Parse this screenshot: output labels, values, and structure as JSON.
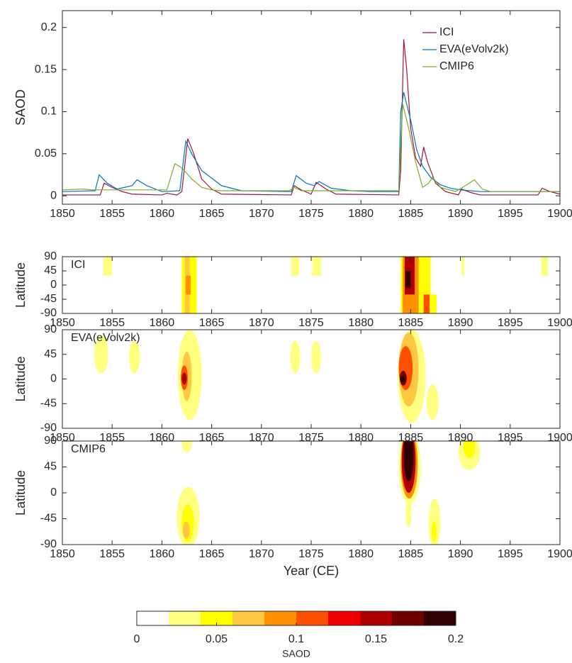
{
  "chart_data": [
    {
      "type": "line",
      "ylabel": "SAOD",
      "xlim": [
        1850,
        1900
      ],
      "xticks": [
        1850,
        1855,
        1860,
        1865,
        1870,
        1875,
        1880,
        1885,
        1890,
        1895,
        1900
      ],
      "ylim": [
        -0.01,
        0.22
      ],
      "yticks": [
        0,
        0.05,
        0.1,
        0.15,
        0.2
      ],
      "legend": "upper right",
      "series": [
        {
          "name": "ICI",
          "color": "#a2142f",
          "x": [
            1850,
            1853.8,
            1854.2,
            1855,
            1856,
            1857,
            1860,
            1860.5,
            1861.5,
            1862.0,
            1862.6,
            1863.2,
            1864,
            1865,
            1866,
            1873.0,
            1873.3,
            1874,
            1875,
            1875.5,
            1876.5,
            1877.5,
            1883.8,
            1884.0,
            1884.3,
            1884.6,
            1885,
            1885.5,
            1886,
            1886.3,
            1886.7,
            1887.5,
            1888.5,
            1889.8,
            1890.1,
            1891,
            1892,
            1897.8,
            1898.2,
            1899,
            1900
          ],
          "values": [
            0.001,
            0.001,
            0.015,
            0.01,
            0.005,
            0.002,
            0.001,
            0.003,
            0.001,
            0.005,
            0.068,
            0.05,
            0.02,
            0.008,
            0.002,
            0.001,
            0.012,
            0.007,
            0.002,
            0.016,
            0.008,
            0.002,
            0.001,
            0.03,
            0.186,
            0.15,
            0.08,
            0.045,
            0.035,
            0.058,
            0.04,
            0.015,
            0.005,
            0.001,
            0.008,
            0.004,
            0.001,
            0.001,
            0.009,
            0.005,
            0.002
          ]
        },
        {
          "name": "EVA(eVolv2k)",
          "color": "#0072bd",
          "x": [
            1850,
            1853.3,
            1853.7,
            1854.5,
            1855.5,
            1857.0,
            1857.5,
            1858.5,
            1860,
            1861.8,
            1862.4,
            1863,
            1864,
            1866,
            1868,
            1873,
            1873.5,
            1874.5,
            1875.3,
            1875.8,
            1877,
            1879,
            1881,
            1883.8,
            1884.0,
            1884.3,
            1885,
            1885.6,
            1886.2,
            1887,
            1888,
            1889,
            1890,
            1891,
            1892,
            1900
          ],
          "values": [
            0.005,
            0.006,
            0.025,
            0.015,
            0.008,
            0.012,
            0.019,
            0.012,
            0.005,
            0.006,
            0.065,
            0.05,
            0.03,
            0.012,
            0.006,
            0.005,
            0.024,
            0.015,
            0.012,
            0.017,
            0.009,
            0.006,
            0.005,
            0.005,
            0.1,
            0.123,
            0.09,
            0.055,
            0.035,
            0.022,
            0.013,
            0.009,
            0.007,
            0.006,
            0.005,
            0.005
          ]
        },
        {
          "name": "CMIP6",
          "color": "#77ac30",
          "x": [
            1850,
            1852,
            1853,
            1860.5,
            1861.3,
            1861.8,
            1862.4,
            1863,
            1864,
            1865,
            1866,
            1872.8,
            1873.3,
            1874,
            1883.8,
            1884.0,
            1884.2,
            1884.8,
            1885.5,
            1886.2,
            1886.8,
            1887.2,
            1888,
            1889.5,
            1890.5,
            1891.4,
            1892.2,
            1893,
            1900
          ],
          "values": [
            0.007,
            0.008,
            0.007,
            0.007,
            0.038,
            0.035,
            0.028,
            0.02,
            0.01,
            0.007,
            0.006,
            0.006,
            0.01,
            0.006,
            0.006,
            0.06,
            0.109,
            0.08,
            0.04,
            0.01,
            0.015,
            0.022,
            0.01,
            0.005,
            0.012,
            0.019,
            0.008,
            0.005,
            0.005
          ]
        }
      ]
    },
    {
      "type": "heatmap",
      "label": "ICI",
      "ylabel": "Latitude",
      "shape": "rect",
      "xlim": [
        1850,
        1900
      ],
      "xticks": [
        1850,
        1855,
        1860,
        1865,
        1870,
        1875,
        1880,
        1885,
        1890,
        1895,
        1900
      ],
      "ylim": [
        -90,
        90
      ],
      "yticks": [
        -90,
        -45,
        0,
        45,
        90
      ],
      "patches": [
        {
          "x": [
            1854.1,
            1855.0
          ],
          "lat": [
            30,
            90
          ],
          "value": 0.03
        },
        {
          "x": [
            1862.0,
            1863.5
          ],
          "lat": [
            -90,
            90
          ],
          "value": 0.04
        },
        {
          "x": [
            1862.3,
            1862.8
          ],
          "lat": [
            -90,
            90
          ],
          "value": 0.06
        },
        {
          "x": [
            1862.4,
            1862.9
          ],
          "lat": [
            -30,
            30
          ],
          "value": 0.08
        },
        {
          "x": [
            1873.0,
            1873.8
          ],
          "lat": [
            30,
            90
          ],
          "value": 0.03
        },
        {
          "x": [
            1875.1,
            1876.0
          ],
          "lat": [
            30,
            90
          ],
          "value": 0.03
        },
        {
          "x": [
            1884.0,
            1886.0
          ],
          "lat": [
            -90,
            90
          ],
          "value": 0.05
        },
        {
          "x": [
            1886.0,
            1887.6
          ],
          "lat": [
            -90,
            -30
          ],
          "value": 0.04
        },
        {
          "x": [
            1886.0,
            1887.0
          ],
          "lat": [
            -30,
            90
          ],
          "value": 0.04
        },
        {
          "x": [
            1884.2,
            1885.8
          ],
          "lat": [
            -90,
            90
          ],
          "value": 0.09
        },
        {
          "x": [
            1884.4,
            1885.4
          ],
          "lat": [
            -30,
            90
          ],
          "value": 0.15
        },
        {
          "x": [
            1884.5,
            1885.0
          ],
          "lat": [
            -10,
            45
          ],
          "value": 0.19
        },
        {
          "x": [
            1886.3,
            1886.9
          ],
          "lat": [
            -90,
            -30
          ],
          "value": 0.1
        },
        {
          "x": [
            1890.1,
            1890.4
          ],
          "lat": [
            30,
            90
          ],
          "value": 0.03
        },
        {
          "x": [
            1898.1,
            1898.8
          ],
          "lat": [
            30,
            90
          ],
          "value": 0.03
        }
      ]
    },
    {
      "type": "heatmap",
      "label": "EVA(eVolv2k)",
      "ylabel": "Latitude",
      "shape": "ellipse",
      "xlim": [
        1850,
        1900
      ],
      "xticks": [
        1850,
        1855,
        1860,
        1865,
        1870,
        1875,
        1880,
        1885,
        1890,
        1895,
        1900
      ],
      "ylim": [
        -90,
        90
      ],
      "yticks": [
        -90,
        -45,
        0,
        45,
        90
      ],
      "patches": [
        {
          "x": [
            1853.2,
            1854.6
          ],
          "lat": [
            10,
            80
          ],
          "value": 0.03
        },
        {
          "x": [
            1856.7,
            1857.8
          ],
          "lat": [
            10,
            70
          ],
          "value": 0.03
        },
        {
          "x": [
            1861.6,
            1864.0
          ],
          "lat": [
            -75,
            90
          ],
          "value": 0.03
        },
        {
          "x": [
            1862.0,
            1863.0
          ],
          "lat": [
            -40,
            50
          ],
          "value": 0.06
        },
        {
          "x": [
            1861.9,
            1862.6
          ],
          "lat": [
            -20,
            25
          ],
          "value": 0.1
        },
        {
          "x": [
            1862.0,
            1862.5
          ],
          "lat": [
            -10,
            12
          ],
          "value": 0.14
        },
        {
          "x": [
            1872.9,
            1873.9
          ],
          "lat": [
            10,
            70
          ],
          "value": 0.03
        },
        {
          "x": [
            1875.0,
            1876.0
          ],
          "lat": [
            10,
            70
          ],
          "value": 0.03
        },
        {
          "x": [
            1883.7,
            1886.5
          ],
          "lat": [
            -80,
            90
          ],
          "value": 0.03
        },
        {
          "x": [
            1883.8,
            1885.8
          ],
          "lat": [
            -50,
            85
          ],
          "value": 0.07
        },
        {
          "x": [
            1883.8,
            1885.2
          ],
          "lat": [
            -20,
            60
          ],
          "value": 0.11
        },
        {
          "x": [
            1883.9,
            1884.6
          ],
          "lat": [
            -12,
            15
          ],
          "value": 0.17
        },
        {
          "x": [
            1884.0,
            1884.4
          ],
          "lat": [
            -6,
            6
          ],
          "value": 0.2
        },
        {
          "x": [
            1886.6,
            1887.8
          ],
          "lat": [
            -75,
            -10
          ],
          "value": 0.03
        }
      ]
    },
    {
      "type": "heatmap",
      "label": "CMIP6",
      "ylabel": "Latitude",
      "xlabel": "Year (CE)",
      "shape": "ellipse",
      "xlim": [
        1850,
        1900
      ],
      "xticks": [
        1850,
        1855,
        1860,
        1865,
        1870,
        1875,
        1880,
        1885,
        1890,
        1895,
        1900
      ],
      "ylim": [
        -90,
        90
      ],
      "yticks": [
        -90,
        -45,
        0,
        45,
        90
      ],
      "patches": [
        {
          "x": [
            1862.0,
            1863.0
          ],
          "lat": [
            70,
            100
          ],
          "value": 0.03
        },
        {
          "x": [
            1861.5,
            1863.8
          ],
          "lat": [
            -95,
            10
          ],
          "value": 0.03
        },
        {
          "x": [
            1862.0,
            1863.2
          ],
          "lat": [
            -85,
            -20
          ],
          "value": 0.05
        },
        {
          "x": [
            1862.1,
            1862.8
          ],
          "lat": [
            -80,
            -50
          ],
          "value": 0.07
        },
        {
          "x": [
            1883.8,
            1886.0
          ],
          "lat": [
            -20,
            110
          ],
          "value": 0.03
        },
        {
          "x": [
            1884.0,
            1885.7
          ],
          "lat": [
            -10,
            110
          ],
          "value": 0.08
        },
        {
          "x": [
            1884.1,
            1885.5
          ],
          "lat": [
            0,
            110
          ],
          "value": 0.14
        },
        {
          "x": [
            1884.3,
            1885.3
          ],
          "lat": [
            20,
            110
          ],
          "value": 0.19
        },
        {
          "x": [
            1884.5,
            1885.1
          ],
          "lat": [
            -60,
            -10
          ],
          "value": 0.03
        },
        {
          "x": [
            1886.8,
            1888.0
          ],
          "lat": [
            -95,
            -10
          ],
          "value": 0.03
        },
        {
          "x": [
            1887.1,
            1887.6
          ],
          "lat": [
            -85,
            -50
          ],
          "value": 0.05
        },
        {
          "x": [
            1889.8,
            1892.0
          ],
          "lat": [
            40,
            100
          ],
          "value": 0.03
        },
        {
          "x": [
            1890.3,
            1891.5
          ],
          "lat": [
            60,
            100
          ],
          "value": 0.05
        }
      ]
    },
    {
      "type": "colorbar",
      "label": "SAOD",
      "levels": [
        0,
        0.02,
        0.04,
        0.06,
        0.08,
        0.1,
        0.12,
        0.14,
        0.16,
        0.18,
        0.2
      ],
      "colors": [
        "#ffffff",
        "#ffff80",
        "#ffff00",
        "#ffc840",
        "#ff9000",
        "#ff5000",
        "#ee0000",
        "#b00000",
        "#700000",
        "#300000"
      ],
      "xlim": [
        0,
        0.2
      ],
      "xticks": [
        0,
        0.05,
        0.1,
        0.15,
        0.2
      ]
    }
  ]
}
